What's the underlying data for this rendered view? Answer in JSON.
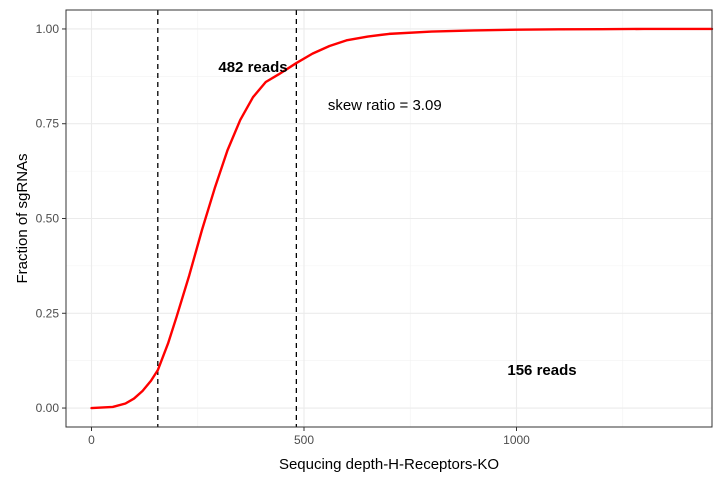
{
  "chart_data": {
    "type": "line",
    "xlabel": "Sequcing depth-H-Receptors-KO",
    "ylabel": "Fraction of sgRNAs",
    "xlim": [
      -60,
      1460
    ],
    "ylim": [
      -0.05,
      1.05
    ],
    "x_ticks": [
      0,
      500,
      1000
    ],
    "y_ticks": [
      0.0,
      0.25,
      0.5,
      0.75,
      1.0
    ],
    "x_tick_labels": [
      "0",
      "500",
      "1000"
    ],
    "y_tick_labels": [
      "0.00",
      "0.25",
      "0.50",
      "0.75",
      "1.00"
    ],
    "grid": true,
    "series": [
      {
        "color": "#ff0000",
        "x": [
          0,
          50,
          80,
          100,
          120,
          140,
          156,
          180,
          200,
          230,
          260,
          290,
          320,
          350,
          380,
          410,
          440,
          482,
          520,
          560,
          600,
          650,
          700,
          800,
          900,
          1000,
          1100,
          1200,
          1300,
          1460
        ],
        "y": [
          0.0,
          0.003,
          0.012,
          0.025,
          0.045,
          0.072,
          0.1,
          0.17,
          0.24,
          0.35,
          0.47,
          0.58,
          0.68,
          0.76,
          0.82,
          0.86,
          0.88,
          0.91,
          0.935,
          0.955,
          0.97,
          0.98,
          0.987,
          0.993,
          0.996,
          0.998,
          0.999,
          0.9995,
          1.0,
          1.0
        ]
      }
    ],
    "vlines": [
      {
        "x": 156,
        "style": "dashed",
        "color": "#000000"
      },
      {
        "x": 482,
        "style": "dashed",
        "color": "#000000"
      }
    ],
    "annotations": [
      {
        "text": "482 reads",
        "x": 380,
        "y": 0.9,
        "bold": true
      },
      {
        "text": "skew ratio = 3.09",
        "x": 690,
        "y": 0.8,
        "bold": false
      },
      {
        "text": "156 reads",
        "x": 1060,
        "y": 0.1,
        "bold": true
      }
    ]
  }
}
